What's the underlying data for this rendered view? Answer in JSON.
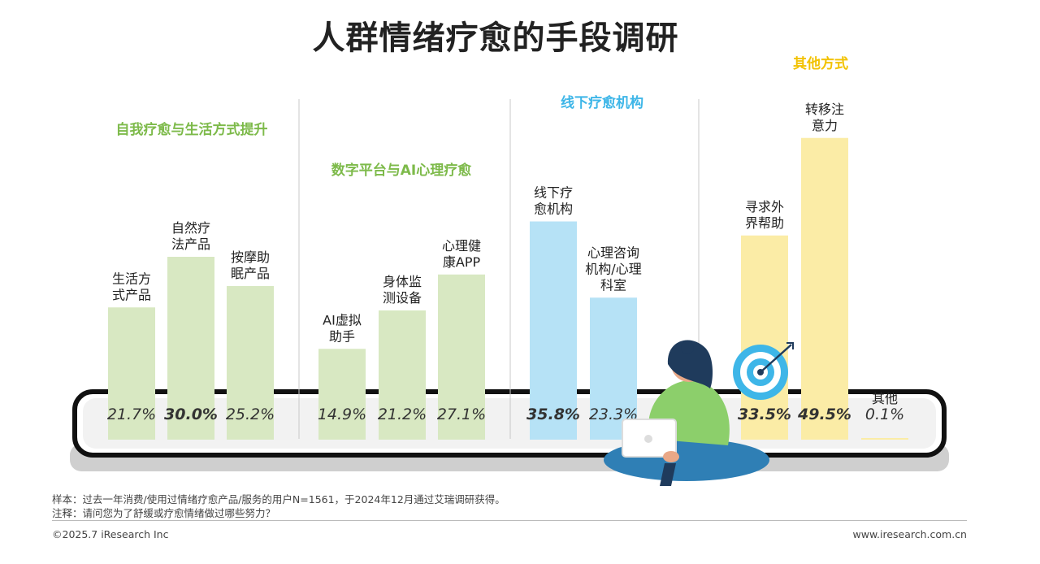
{
  "title": "人群情绪疗愈的手段调研",
  "chart_data": {
    "type": "bar",
    "groups": [
      {
        "name": "自我疗愈与生活方式提升",
        "color": "#7DBA4A",
        "bar_color": "#D8E8C2",
        "items": [
          {
            "label": [
              "生活方",
              "式产品"
            ],
            "value": 21.7,
            "value_text": "21.7%",
            "bold": false
          },
          {
            "label": [
              "自然疗",
              "法产品"
            ],
            "value": 30.0,
            "value_text": "30.0%",
            "bold": true
          },
          {
            "label": [
              "按摩助",
              "眠产品"
            ],
            "value": 25.2,
            "value_text": "25.2%",
            "bold": false
          }
        ]
      },
      {
        "name": "数字平台与AI心理疗愈",
        "color": "#7DBA4A",
        "bar_color": "#D8E8C2",
        "items": [
          {
            "label": [
              "AI虚拟",
              "助手"
            ],
            "value": 14.9,
            "value_text": "14.9%",
            "bold": false
          },
          {
            "label": [
              "身体监",
              "测设备"
            ],
            "value": 21.2,
            "value_text": "21.2%",
            "bold": false
          },
          {
            "label": [
              "心理健",
              "康APP"
            ],
            "value": 27.1,
            "value_text": "27.1%",
            "bold": false
          }
        ]
      },
      {
        "name": "线下疗愈机构",
        "color": "#3EB6E8",
        "bar_color": "#B6E2F6",
        "items": [
          {
            "label": [
              "线下疗",
              "愈机构"
            ],
            "value": 35.8,
            "value_text": "35.8%",
            "bold": true
          },
          {
            "label": [
              "心理咨询",
              "机构/心理",
              "科室"
            ],
            "value": 23.3,
            "value_text": "23.3%",
            "bold": false
          }
        ]
      },
      {
        "name": "其他方式",
        "color": "#F2C200",
        "bar_color": "#FBECA6",
        "items": [
          {
            "label": [
              "寻求外",
              "界帮助"
            ],
            "value": 33.5,
            "value_text": "33.5%",
            "bold": true
          },
          {
            "label": [
              "转移注",
              "意力"
            ],
            "value": 49.5,
            "value_text": "49.5%",
            "bold": true
          },
          {
            "label": [
              "其他"
            ],
            "value": 0.1,
            "value_text": "0.1%",
            "bold": false
          }
        ]
      }
    ]
  },
  "notes": {
    "sample": "样本：过去一年消费/使用过情绪疗愈产品/服务的用户N=1561，于2024年12月通过艾瑞调研获得。",
    "question": "注释：请问您为了舒缓或疗愈情绪做过哪些努力？"
  },
  "copyright": "©2025.7 iResearch Inc",
  "site": "www.iresearch.com.cn"
}
